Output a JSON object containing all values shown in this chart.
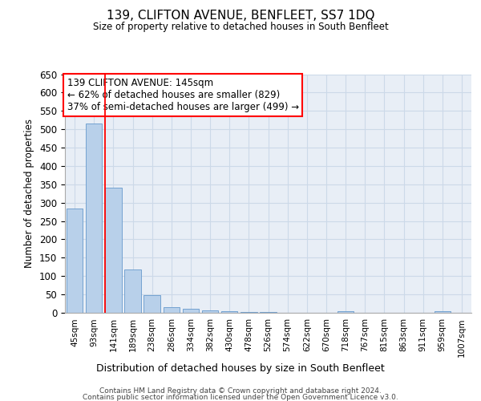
{
  "title": "139, CLIFTON AVENUE, BENFLEET, SS7 1DQ",
  "subtitle": "Size of property relative to detached houses in South Benfleet",
  "xlabel": "Distribution of detached houses by size in South Benfleet",
  "ylabel": "Number of detached properties",
  "bar_color": "#b8d0ea",
  "bar_edge_color": "#6699cc",
  "categories": [
    "45sqm",
    "93sqm",
    "141sqm",
    "189sqm",
    "238sqm",
    "286sqm",
    "334sqm",
    "382sqm",
    "430sqm",
    "478sqm",
    "526sqm",
    "574sqm",
    "622sqm",
    "670sqm",
    "718sqm",
    "767sqm",
    "815sqm",
    "863sqm",
    "911sqm",
    "959sqm",
    "1007sqm"
  ],
  "values": [
    285,
    515,
    340,
    118,
    48,
    15,
    10,
    7,
    5,
    3,
    2,
    0,
    0,
    0,
    5,
    0,
    0,
    0,
    0,
    5,
    0
  ],
  "red_line_index": 2,
  "annotation_line1": "139 CLIFTON AVENUE: 145sqm",
  "annotation_line2": "← 62% of detached houses are smaller (829)",
  "annotation_line3": "37% of semi-detached houses are larger (499) →",
  "ylim": [
    0,
    650
  ],
  "yticks": [
    0,
    50,
    100,
    150,
    200,
    250,
    300,
    350,
    400,
    450,
    500,
    550,
    600,
    650
  ],
  "footer_line1": "Contains HM Land Registry data © Crown copyright and database right 2024.",
  "footer_line2": "Contains public sector information licensed under the Open Government Licence v3.0.",
  "grid_color": "#ccd9e8",
  "background_color": "#e8eef6"
}
